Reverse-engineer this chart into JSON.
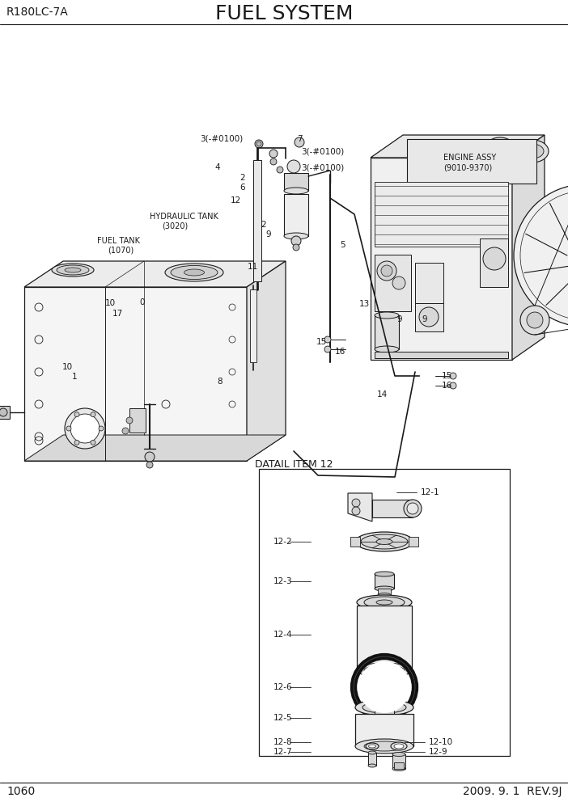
{
  "title": "FUEL SYSTEM",
  "subtitle_left": "R180LC-7A",
  "page_number": "1060",
  "date_rev": "2009. 9. 1  REV.9J",
  "bg": "#ffffff",
  "lc": "#1a1a1a",
  "title_fs": 18,
  "label_fs": 7.5,
  "header_fs": 10
}
